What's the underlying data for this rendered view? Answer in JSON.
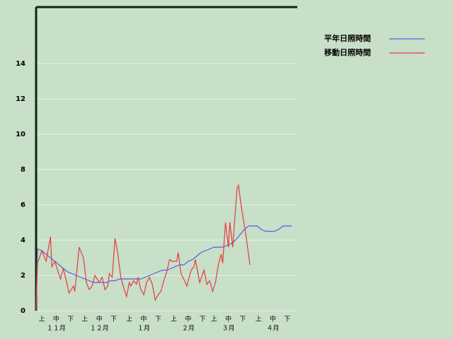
{
  "chart_data": {
    "type": "line",
    "series": [
      {
        "name": "平年日照時間",
        "color": "#5a5ae6",
        "x": [
          0,
          1,
          4,
          7,
          10,
          13,
          16,
          19,
          22,
          25,
          28,
          31,
          34,
          37,
          40,
          43,
          46,
          49,
          52,
          55,
          58,
          61,
          64,
          67,
          70,
          73,
          76,
          79,
          82,
          85,
          88,
          91,
          94,
          97,
          100,
          103,
          106,
          109,
          112,
          115,
          118,
          121,
          124,
          127,
          130,
          133,
          136,
          139,
          142,
          145,
          148,
          151,
          154,
          157,
          160,
          163,
          166,
          169,
          172,
          175,
          178
        ],
        "values": [
          0,
          3.5,
          3.4,
          3.2,
          3.0,
          2.8,
          2.6,
          2.4,
          2.2,
          2.1,
          2.0,
          1.9,
          1.8,
          1.7,
          1.6,
          1.6,
          1.6,
          1.6,
          1.7,
          1.7,
          1.8,
          1.8,
          1.8,
          1.8,
          1.8,
          1.8,
          1.9,
          2.0,
          2.1,
          2.2,
          2.3,
          2.3,
          2.4,
          2.5,
          2.6,
          2.6,
          2.8,
          2.9,
          3.1,
          3.3,
          3.4,
          3.5,
          3.6,
          3.6,
          3.6,
          3.7,
          3.8,
          4.0,
          4.3,
          4.6,
          4.8,
          4.8,
          4.8,
          4.6,
          4.5,
          4.5,
          4.5,
          4.6,
          4.8,
          4.8,
          4.8
        ]
      },
      {
        "name": "移動日照時間",
        "color": "#e63c3c",
        "x": [
          0,
          1,
          4,
          7,
          10,
          11,
          13,
          17,
          19,
          21,
          23,
          26,
          27,
          30,
          33,
          35,
          37,
          39,
          41,
          44,
          46,
          48,
          50,
          51,
          53,
          55,
          57,
          59,
          61,
          63,
          65,
          66,
          68,
          70,
          71,
          73,
          75,
          77,
          79,
          81,
          83,
          85,
          87,
          89,
          91,
          93,
          95,
          98,
          99,
          101,
          104,
          105,
          108,
          110,
          111,
          114,
          117,
          119,
          121,
          123,
          125,
          127,
          129,
          130,
          132,
          133,
          134,
          135,
          137,
          140,
          141,
          143,
          146,
          148,
          149
        ],
        "values": [
          0,
          2.7,
          3.4,
          2.8,
          4.2,
          2.5,
          2.8,
          1.8,
          2.4,
          1.7,
          1.0,
          1.4,
          1.1,
          3.6,
          3.0,
          1.6,
          1.2,
          1.4,
          2.0,
          1.6,
          1.9,
          1.2,
          1.4,
          2.1,
          1.9,
          4.1,
          3.2,
          1.9,
          1.3,
          0.8,
          1.6,
          1.4,
          1.7,
          1.5,
          1.9,
          1.2,
          0.9,
          1.6,
          1.9,
          1.5,
          0.6,
          0.9,
          1.1,
          1.7,
          2.2,
          2.9,
          2.8,
          2.8,
          3.3,
          2.1,
          1.6,
          1.4,
          2.3,
          2.5,
          2.9,
          1.6,
          2.3,
          1.5,
          1.7,
          1.1,
          1.6,
          2.6,
          3.2,
          2.7,
          5.0,
          4.3,
          3.6,
          5.0,
          3.6,
          6.9,
          7.1,
          5.9,
          4.4,
          3.2,
          2.6
        ]
      }
    ],
    "xlim": [
      0,
      182
    ],
    "xticks": [
      {
        "value": 4,
        "label": "上"
      },
      {
        "value": 14,
        "label": "中"
      },
      {
        "value": 24,
        "label": "下"
      },
      {
        "value": 34,
        "label": "上"
      },
      {
        "value": 44,
        "label": "中"
      },
      {
        "value": 54,
        "label": "下"
      },
      {
        "value": 65,
        "label": "上"
      },
      {
        "value": 75,
        "label": "中"
      },
      {
        "value": 85,
        "label": "下"
      },
      {
        "value": 96,
        "label": "上"
      },
      {
        "value": 106,
        "label": "中"
      },
      {
        "value": 116,
        "label": "下"
      },
      {
        "value": 124,
        "label": "上"
      },
      {
        "value": 134,
        "label": "中"
      },
      {
        "value": 144,
        "label": "下"
      },
      {
        "value": 155,
        "label": "上"
      },
      {
        "value": 165,
        "label": "中"
      },
      {
        "value": 175,
        "label": "下"
      }
    ],
    "months": [
      {
        "value": 14,
        "label": "１１月"
      },
      {
        "value": 44,
        "label": "１２月"
      },
      {
        "value": 75,
        "label": "１月"
      },
      {
        "value": 106,
        "label": "２月"
      },
      {
        "value": 134,
        "label": "３月"
      },
      {
        "value": 165,
        "label": "４月"
      }
    ],
    "ylim": [
      0,
      17.2
    ],
    "yticks": [
      0,
      2,
      4,
      6,
      8,
      10,
      12,
      14
    ],
    "grid": true
  }
}
